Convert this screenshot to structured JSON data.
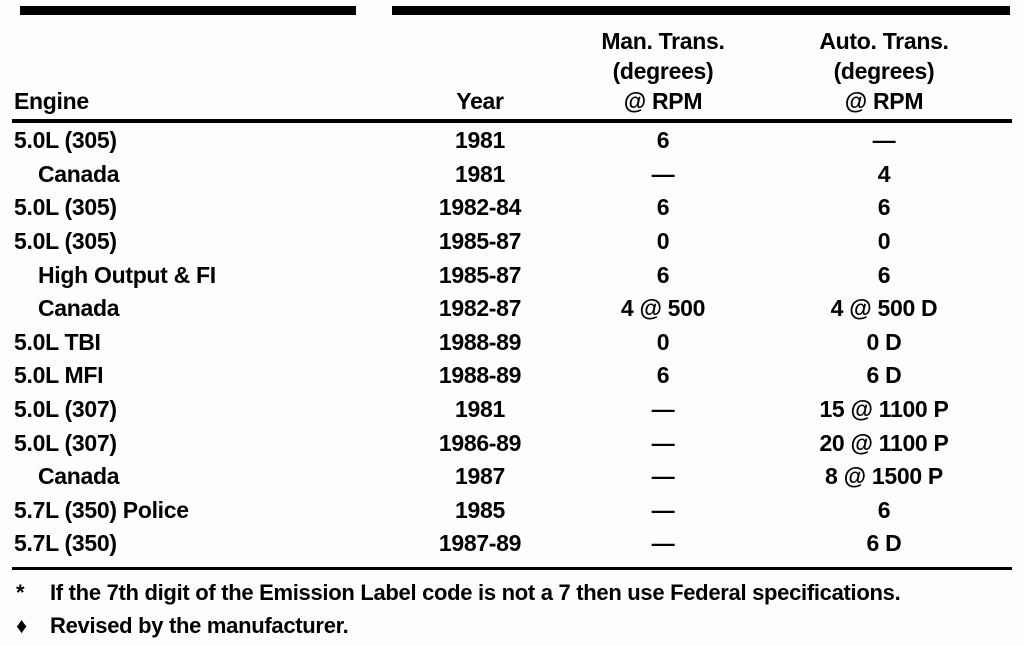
{
  "table": {
    "headers": {
      "engine": "Engine",
      "year": "Year",
      "man": {
        "line1": "Man. Trans.",
        "line2": "(degrees)",
        "line3": "@ RPM"
      },
      "auto": {
        "line1": "Auto. Trans.",
        "line2": "(degrees)",
        "line3": "@ RPM"
      }
    },
    "rows": [
      {
        "engine": "5.0L (305)",
        "year": "1981",
        "man": "6",
        "auto": "—"
      },
      {
        "engine": "Canada",
        "year": "1981",
        "man": "—",
        "auto": "4"
      },
      {
        "engine": "5.0L (305)",
        "year": "1982-84",
        "man": "6",
        "auto": "6"
      },
      {
        "engine": "5.0L (305)",
        "year": "1985-87",
        "man": "0",
        "auto": "0"
      },
      {
        "engine": "High Output & FI",
        "year": "1985-87",
        "man": "6",
        "auto": "6"
      },
      {
        "engine": "Canada",
        "year": "1982-87",
        "man": "4 @ 500",
        "auto": "4 @ 500 D"
      },
      {
        "engine": "5.0L TBI",
        "year": "1988-89",
        "man": "0",
        "auto": "0 D"
      },
      {
        "engine": "5.0L MFI",
        "year": "1988-89",
        "man": "6",
        "auto": "6 D"
      },
      {
        "engine": "5.0L (307)",
        "year": "1981",
        "man": "—",
        "auto": "15 @ 1100 P"
      },
      {
        "engine": "5.0L (307)",
        "year": "1986-89",
        "man": "—",
        "auto": "20 @ 1100 P"
      },
      {
        "engine": "Canada",
        "year": "1987",
        "man": "—",
        "auto": "8 @ 1500 P"
      },
      {
        "engine": "5.7L (350) Police",
        "year": "1985",
        "man": "—",
        "auto": "6"
      },
      {
        "engine": "5.7L (350)",
        "year": "1987-89",
        "man": "—",
        "auto": "6 D"
      }
    ]
  },
  "footnotes": [
    {
      "symbol": "*",
      "text": "If the 7th digit of the Emission Label code is not a 7 then use Federal specifications."
    },
    {
      "symbol": "♦",
      "text": "Revised by the manufacturer."
    }
  ]
}
